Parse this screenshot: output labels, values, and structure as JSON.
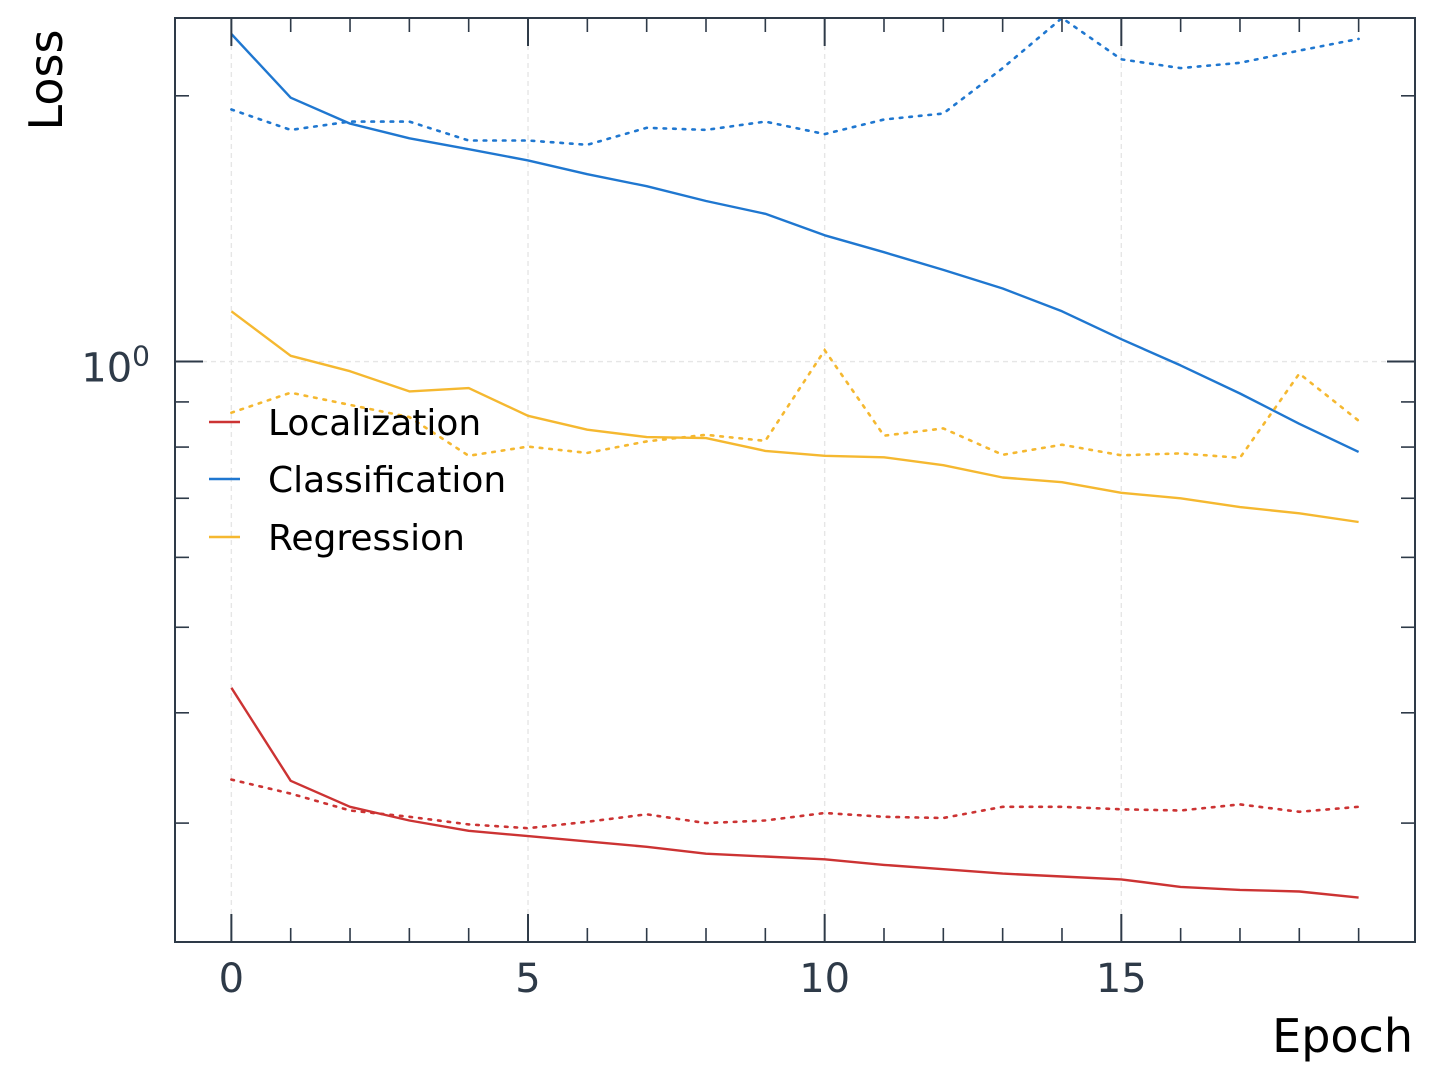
{
  "chart_data": {
    "type": "line",
    "xlabel": "Epoch",
    "ylabel": "Loss",
    "yscale": "log",
    "xlim": [
      -0.95,
      19.95
    ],
    "ylim": [
      0.22,
      2.45
    ],
    "x": [
      0,
      1,
      2,
      3,
      4,
      5,
      6,
      7,
      8,
      9,
      10,
      11,
      12,
      13,
      14,
      15,
      16,
      17,
      18,
      19
    ],
    "xticks": [
      0,
      5,
      10,
      15
    ],
    "xtick_labels": [
      "0",
      "5",
      "10",
      "15"
    ],
    "yticks": [
      1
    ],
    "ytick_labels": [
      "10",
      "0"
    ],
    "grid": true,
    "legend_position": "center-left",
    "legend": [
      "Localization",
      "Classification",
      "Regression"
    ],
    "series": [
      {
        "name": "Localization",
        "color": "#cc3333",
        "train": [
          0.427,
          0.335,
          0.313,
          0.302,
          0.294,
          0.29,
          0.286,
          0.282,
          0.277,
          0.275,
          0.273,
          0.269,
          0.266,
          0.263,
          0.261,
          0.259,
          0.254,
          0.252,
          0.251,
          0.247
        ],
        "val": [
          0.336,
          0.324,
          0.31,
          0.305,
          0.299,
          0.296,
          0.301,
          0.307,
          0.3,
          0.302,
          0.308,
          0.305,
          0.304,
          0.313,
          0.313,
          0.311,
          0.31,
          0.315,
          0.309,
          0.313
        ]
      },
      {
        "name": "Classification",
        "color": "#1f77d0",
        "train": [
          2.35,
          1.99,
          1.86,
          1.79,
          1.74,
          1.69,
          1.63,
          1.58,
          1.52,
          1.47,
          1.39,
          1.33,
          1.27,
          1.21,
          1.14,
          1.06,
          0.99,
          0.92,
          0.85,
          0.79
        ],
        "val": [
          1.93,
          1.83,
          1.87,
          1.87,
          1.78,
          1.78,
          1.76,
          1.84,
          1.83,
          1.87,
          1.81,
          1.88,
          1.91,
          2.15,
          2.45,
          2.2,
          2.15,
          2.18,
          2.25,
          2.32
        ]
      },
      {
        "name": "Regression",
        "color": "#f5b830",
        "train": [
          1.14,
          1.015,
          0.975,
          0.925,
          0.933,
          0.868,
          0.837,
          0.821,
          0.819,
          0.792,
          0.782,
          0.779,
          0.763,
          0.739,
          0.73,
          0.71,
          0.7,
          0.684,
          0.673,
          0.658
        ],
        "val": [
          0.875,
          0.922,
          0.893,
          0.865,
          0.782,
          0.801,
          0.788,
          0.812,
          0.826,
          0.813,
          1.03,
          0.824,
          0.84,
          0.784,
          0.805,
          0.783,
          0.787,
          0.778,
          0.969,
          0.857
        ]
      }
    ]
  }
}
